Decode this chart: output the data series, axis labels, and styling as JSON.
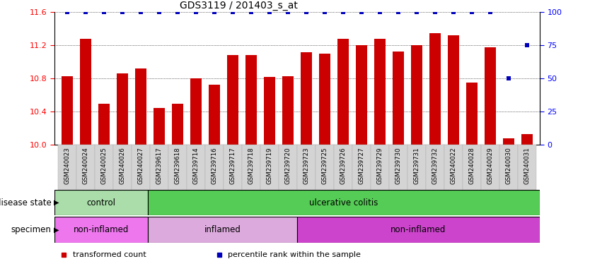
{
  "title": "GDS3119 / 201403_s_at",
  "samples": [
    "GSM240023",
    "GSM240024",
    "GSM240025",
    "GSM240026",
    "GSM240027",
    "GSM239617",
    "GSM239618",
    "GSM239714",
    "GSM239716",
    "GSM239717",
    "GSM239718",
    "GSM239719",
    "GSM239720",
    "GSM239723",
    "GSM239725",
    "GSM239726",
    "GSM239727",
    "GSM239729",
    "GSM239730",
    "GSM239731",
    "GSM239732",
    "GSM240022",
    "GSM240028",
    "GSM240029",
    "GSM240030",
    "GSM240031"
  ],
  "transformed_count": [
    10.83,
    11.28,
    10.5,
    10.86,
    10.92,
    10.45,
    10.5,
    10.8,
    10.73,
    11.08,
    11.08,
    10.82,
    10.83,
    11.12,
    11.1,
    11.28,
    11.2,
    11.28,
    11.13,
    11.2,
    11.35,
    11.32,
    10.75,
    11.18,
    10.08,
    10.13
  ],
  "percentile": [
    100,
    100,
    100,
    100,
    100,
    100,
    100,
    100,
    100,
    100,
    100,
    100,
    100,
    100,
    100,
    100,
    100,
    100,
    100,
    100,
    100,
    100,
    100,
    100,
    50,
    75
  ],
  "ylim_left": [
    10.0,
    11.6
  ],
  "ylim_right": [
    0,
    100
  ],
  "yticks_left": [
    10.0,
    10.4,
    10.8,
    11.2,
    11.6
  ],
  "yticks_right": [
    0,
    25,
    50,
    75,
    100
  ],
  "bar_color": "#cc0000",
  "percentile_color": "#0000bb",
  "bg_color": "#ffffff",
  "plot_bg_color": "#ffffff",
  "grid_color": "black",
  "disease_state_groups": [
    {
      "label": "control",
      "start": 0,
      "end": 5,
      "color": "#aaddaa"
    },
    {
      "label": "ulcerative colitis",
      "start": 5,
      "end": 26,
      "color": "#55cc55"
    }
  ],
  "specimen_groups": [
    {
      "label": "non-inflamed",
      "start": 0,
      "end": 5,
      "color": "#ee77ee"
    },
    {
      "label": "inflamed",
      "start": 5,
      "end": 13,
      "color": "#ddaadd"
    },
    {
      "label": "non-inflamed",
      "start": 13,
      "end": 26,
      "color": "#cc44cc"
    }
  ],
  "legend_items": [
    {
      "label": "transformed count",
      "color": "#cc0000",
      "marker": "s"
    },
    {
      "label": "percentile rank within the sample",
      "color": "#0000bb",
      "marker": "s"
    }
  ],
  "label_disease_state": "disease state",
  "label_specimen": "specimen",
  "n_samples": 26
}
